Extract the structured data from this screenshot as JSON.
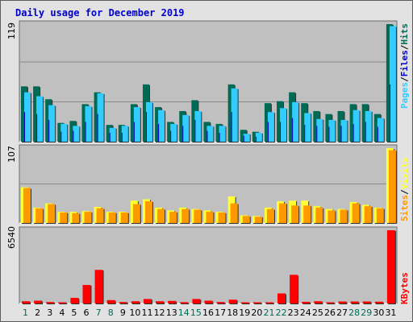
{
  "title": "Daily usage for December 2019",
  "colors": {
    "frame": "#e2e2e2",
    "panel": "#c0c0c0",
    "grid": "#8a8a8a",
    "hits": "#006b55",
    "pages": "#33ccff",
    "visits": "#ffff33",
    "sites": "#ff9900",
    "kbytes": "#ff0000",
    "title": "#0000cc",
    "day_normal": "#000000",
    "day_weekend": "#006b55"
  },
  "legends": {
    "top": {
      "pages": {
        "text": "Pages",
        "color": "#33ccff"
      },
      "sep1": "/",
      "files": {
        "text": "Files",
        "color": "#0000cc"
      },
      "sep2": "/",
      "hits": {
        "text": "Hits",
        "color": "#006b55"
      }
    },
    "middle": {
      "sites": {
        "text": "Sites",
        "color": "#ff9900"
      },
      "sep1": "/",
      "visits": {
        "text": "Visits",
        "color": "#ffff33"
      }
    },
    "bottom": {
      "kbytes": {
        "text": "KBytes",
        "color": "#ff0000"
      }
    }
  },
  "chart_data": [
    {
      "type": "bar",
      "panel": "top",
      "ymax_label": "119",
      "ylim": [
        0,
        119
      ],
      "x": [
        1,
        2,
        3,
        4,
        5,
        6,
        7,
        8,
        9,
        10,
        11,
        12,
        13,
        14,
        15,
        16,
        17,
        18,
        19,
        20,
        21,
        22,
        23,
        24,
        25,
        26,
        27,
        28,
        29,
        30,
        31
      ],
      "series": [
        {
          "name": "Hits",
          "color": "#006b55",
          "values": [
            56,
            56,
            43,
            19,
            21,
            38,
            50,
            17,
            17,
            38,
            58,
            35,
            20,
            31,
            42,
            20,
            18,
            58,
            12,
            10,
            39,
            41,
            50,
            39,
            31,
            28,
            31,
            38,
            38,
            28,
            119
          ]
        },
        {
          "name": "Files",
          "color": "#0000cc",
          "values": [
            30,
            28,
            22,
            10,
            11,
            20,
            28,
            9,
            9,
            20,
            30,
            18,
            11,
            16,
            22,
            11,
            9,
            30,
            6,
            5,
            20,
            20,
            24,
            17,
            16,
            15,
            16,
            18,
            20,
            15,
            58
          ]
        },
        {
          "name": "Pages",
          "color": "#33ccff",
          "values": [
            50,
            46,
            37,
            18,
            16,
            36,
            49,
            14,
            16,
            35,
            40,
            32,
            18,
            27,
            31,
            16,
            16,
            54,
            8,
            9,
            30,
            34,
            40,
            29,
            23,
            22,
            22,
            32,
            31,
            24,
            117
          ]
        }
      ]
    },
    {
      "type": "bar",
      "panel": "middle",
      "ymax_label": "107",
      "ylim": [
        0,
        107
      ],
      "x": [
        1,
        2,
        3,
        4,
        5,
        6,
        7,
        8,
        9,
        10,
        11,
        12,
        13,
        14,
        15,
        16,
        17,
        18,
        19,
        20,
        21,
        22,
        23,
        24,
        25,
        26,
        27,
        28,
        29,
        30,
        31
      ],
      "series": [
        {
          "name": "Visits",
          "color": "#ffff33",
          "values": [
            51,
            22,
            28,
            16,
            16,
            17,
            23,
            16,
            16,
            32,
            34,
            22,
            18,
            22,
            20,
            18,
            16,
            38,
            11,
            10,
            22,
            31,
            32,
            32,
            24,
            20,
            20,
            30,
            26,
            22,
            107
          ]
        },
        {
          "name": "Sites",
          "color": "#ff9900",
          "values": [
            50,
            21,
            27,
            15,
            14,
            16,
            21,
            15,
            15,
            27,
            31,
            20,
            16,
            20,
            19,
            16,
            15,
            28,
            10,
            9,
            20,
            28,
            25,
            25,
            22,
            18,
            19,
            28,
            24,
            21,
            104
          ]
        }
      ]
    },
    {
      "type": "bar",
      "panel": "bottom",
      "ymax_label": "6540",
      "ylim": [
        0,
        6540
      ],
      "x": [
        1,
        2,
        3,
        4,
        5,
        6,
        7,
        8,
        9,
        10,
        11,
        12,
        13,
        14,
        15,
        16,
        17,
        18,
        19,
        20,
        21,
        22,
        23,
        24,
        25,
        26,
        27,
        28,
        29,
        30,
        31
      ],
      "series": [
        {
          "name": "KBytes",
          "color": "#ff0000",
          "values": [
            200,
            250,
            130,
            70,
            500,
            1650,
            3000,
            300,
            130,
            200,
            400,
            200,
            230,
            120,
            400,
            250,
            130,
            340,
            90,
            100,
            100,
            900,
            2560,
            150,
            200,
            100,
            180,
            180,
            180,
            160,
            6540
          ]
        }
      ]
    }
  ],
  "days": [
    "1",
    "2",
    "3",
    "4",
    "5",
    "6",
    "7",
    "8",
    "9",
    "10",
    "11",
    "12",
    "13",
    "14",
    "15",
    "16",
    "17",
    "18",
    "19",
    "20",
    "21",
    "22",
    "23",
    "24",
    "25",
    "26",
    "27",
    "28",
    "29",
    "30",
    "31"
  ],
  "weekend_days": [
    1,
    7,
    8,
    14,
    15,
    21,
    22,
    28,
    29
  ]
}
